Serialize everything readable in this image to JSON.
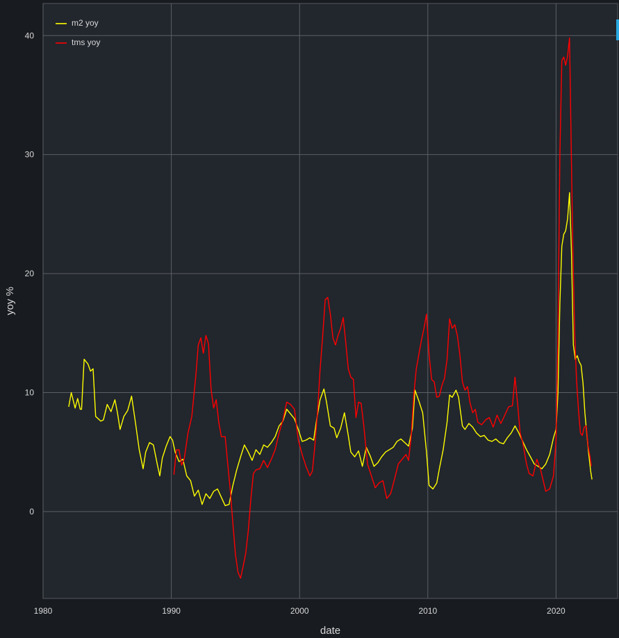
{
  "chart_data": {
    "type": "line",
    "xlabel": "date",
    "ylabel": "yoy %",
    "xlim": [
      1980,
      2024.8
    ],
    "ylim": [
      -7.3,
      42.7
    ],
    "x_ticks": [
      1980,
      1990,
      2000,
      2010,
      2020
    ],
    "y_ticks": [
      0,
      10,
      20,
      30,
      40
    ],
    "grid": true,
    "legend_position": "top-left",
    "background": "#22262d",
    "series": [
      {
        "name": "m2 yoy",
        "color": "#ffff00",
        "points": [
          [
            1982.0,
            8.8
          ],
          [
            1982.2,
            10.0
          ],
          [
            1982.5,
            8.7
          ],
          [
            1982.7,
            9.5
          ],
          [
            1982.9,
            8.6
          ],
          [
            1983.0,
            8.6
          ],
          [
            1983.2,
            12.8
          ],
          [
            1983.5,
            12.4
          ],
          [
            1983.7,
            11.8
          ],
          [
            1983.9,
            12.0
          ],
          [
            1984.1,
            8.0
          ],
          [
            1984.5,
            7.6
          ],
          [
            1984.7,
            7.7
          ],
          [
            1985.0,
            9.0
          ],
          [
            1985.3,
            8.4
          ],
          [
            1985.6,
            9.4
          ],
          [
            1985.8,
            8.3
          ],
          [
            1986.0,
            6.9
          ],
          [
            1986.3,
            8.0
          ],
          [
            1986.6,
            8.5
          ],
          [
            1986.9,
            9.7
          ],
          [
            1987.2,
            7.5
          ],
          [
            1987.5,
            5.2
          ],
          [
            1987.8,
            3.6
          ],
          [
            1988.0,
            5.0
          ],
          [
            1988.3,
            5.8
          ],
          [
            1988.6,
            5.6
          ],
          [
            1988.9,
            4.0
          ],
          [
            1989.1,
            3.0
          ],
          [
            1989.3,
            4.5
          ],
          [
            1989.6,
            5.5
          ],
          [
            1989.9,
            6.3
          ],
          [
            1990.1,
            6.0
          ],
          [
            1990.3,
            5.0
          ],
          [
            1990.6,
            4.2
          ],
          [
            1990.9,
            4.4
          ],
          [
            1991.2,
            3.0
          ],
          [
            1991.5,
            2.6
          ],
          [
            1991.8,
            1.3
          ],
          [
            1992.1,
            1.8
          ],
          [
            1992.4,
            0.6
          ],
          [
            1992.7,
            1.5
          ],
          [
            1993.0,
            1.1
          ],
          [
            1993.3,
            1.7
          ],
          [
            1993.6,
            1.9
          ],
          [
            1993.9,
            1.2
          ],
          [
            1994.2,
            0.5
          ],
          [
            1994.5,
            0.6
          ],
          [
            1994.8,
            2.2
          ],
          [
            1995.1,
            3.5
          ],
          [
            1995.4,
            4.6
          ],
          [
            1995.7,
            5.6
          ],
          [
            1996.0,
            5.0
          ],
          [
            1996.3,
            4.3
          ],
          [
            1996.6,
            5.2
          ],
          [
            1996.9,
            4.8
          ],
          [
            1997.2,
            5.6
          ],
          [
            1997.5,
            5.4
          ],
          [
            1997.8,
            5.8
          ],
          [
            1998.1,
            6.3
          ],
          [
            1998.4,
            7.2
          ],
          [
            1998.7,
            7.6
          ],
          [
            1999.0,
            8.6
          ],
          [
            1999.3,
            8.2
          ],
          [
            1999.6,
            7.8
          ],
          [
            1999.9,
            6.9
          ],
          [
            2000.2,
            5.9
          ],
          [
            2000.5,
            6.0
          ],
          [
            2000.8,
            6.2
          ],
          [
            2001.1,
            6.0
          ],
          [
            2001.3,
            7.5
          ],
          [
            2001.6,
            9.4
          ],
          [
            2001.9,
            10.3
          ],
          [
            2002.1,
            9.2
          ],
          [
            2002.4,
            7.2
          ],
          [
            2002.7,
            7.0
          ],
          [
            2002.9,
            6.2
          ],
          [
            2003.2,
            7.0
          ],
          [
            2003.5,
            8.3
          ],
          [
            2003.8,
            6.4
          ],
          [
            2004.0,
            5.0
          ],
          [
            2004.3,
            4.6
          ],
          [
            2004.6,
            5.1
          ],
          [
            2004.9,
            3.8
          ],
          [
            2005.2,
            5.4
          ],
          [
            2005.5,
            4.7
          ],
          [
            2005.8,
            3.8
          ],
          [
            2006.1,
            4.1
          ],
          [
            2006.4,
            4.6
          ],
          [
            2006.7,
            5.0
          ],
          [
            2007.0,
            5.2
          ],
          [
            2007.3,
            5.4
          ],
          [
            2007.6,
            5.9
          ],
          [
            2007.9,
            6.1
          ],
          [
            2008.2,
            5.8
          ],
          [
            2008.5,
            5.5
          ],
          [
            2008.8,
            7.0
          ],
          [
            2009.0,
            10.2
          ],
          [
            2009.3,
            9.3
          ],
          [
            2009.6,
            8.3
          ],
          [
            2009.9,
            5.0
          ],
          [
            2010.1,
            2.2
          ],
          [
            2010.4,
            1.9
          ],
          [
            2010.7,
            2.4
          ],
          [
            2010.9,
            3.6
          ],
          [
            2011.2,
            5.2
          ],
          [
            2011.5,
            7.5
          ],
          [
            2011.7,
            9.8
          ],
          [
            2011.9,
            9.6
          ],
          [
            2012.2,
            10.2
          ],
          [
            2012.4,
            9.6
          ],
          [
            2012.7,
            7.2
          ],
          [
            2012.9,
            6.9
          ],
          [
            2013.2,
            7.4
          ],
          [
            2013.5,
            7.1
          ],
          [
            2013.8,
            6.6
          ],
          [
            2014.1,
            6.3
          ],
          [
            2014.4,
            6.4
          ],
          [
            2014.7,
            6.0
          ],
          [
            2015.0,
            5.9
          ],
          [
            2015.3,
            6.1
          ],
          [
            2015.6,
            5.8
          ],
          [
            2015.9,
            5.7
          ],
          [
            2016.2,
            6.2
          ],
          [
            2016.5,
            6.6
          ],
          [
            2016.8,
            7.2
          ],
          [
            2017.1,
            6.6
          ],
          [
            2017.4,
            5.9
          ],
          [
            2017.7,
            5.2
          ],
          [
            2018.0,
            4.6
          ],
          [
            2018.3,
            4.0
          ],
          [
            2018.6,
            3.8
          ],
          [
            2018.9,
            3.6
          ],
          [
            2019.2,
            4.0
          ],
          [
            2019.5,
            4.8
          ],
          [
            2019.8,
            6.2
          ],
          [
            2020.0,
            6.9
          ],
          [
            2020.15,
            10.0
          ],
          [
            2020.3,
            17.5
          ],
          [
            2020.45,
            22.3
          ],
          [
            2020.6,
            23.3
          ],
          [
            2020.75,
            23.6
          ],
          [
            2020.9,
            24.6
          ],
          [
            2021.05,
            26.8
          ],
          [
            2021.2,
            22.0
          ],
          [
            2021.35,
            14.0
          ],
          [
            2021.5,
            12.8
          ],
          [
            2021.65,
            13.1
          ],
          [
            2021.8,
            12.6
          ],
          [
            2021.95,
            12.3
          ],
          [
            2022.1,
            10.8
          ],
          [
            2022.25,
            8.3
          ],
          [
            2022.4,
            6.5
          ],
          [
            2022.55,
            4.8
          ],
          [
            2022.7,
            3.4
          ],
          [
            2022.8,
            2.7
          ]
        ]
      },
      {
        "name": "tms yoy",
        "color": "#ff0000",
        "points": [
          [
            1990.2,
            3.1
          ],
          [
            1990.4,
            5.2
          ],
          [
            1990.6,
            5.2
          ],
          [
            1990.8,
            3.9
          ],
          [
            1991.0,
            4.4
          ],
          [
            1991.3,
            6.6
          ],
          [
            1991.6,
            8.0
          ],
          [
            1991.9,
            11.3
          ],
          [
            1992.1,
            14.0
          ],
          [
            1992.3,
            14.6
          ],
          [
            1992.5,
            13.3
          ],
          [
            1992.7,
            14.8
          ],
          [
            1992.9,
            14.1
          ],
          [
            1993.1,
            10.3
          ],
          [
            1993.3,
            8.7
          ],
          [
            1993.5,
            9.4
          ],
          [
            1993.7,
            7.5
          ],
          [
            1993.9,
            6.3
          ],
          [
            1994.2,
            6.3
          ],
          [
            1994.4,
            4.0
          ],
          [
            1994.6,
            1.8
          ],
          [
            1994.8,
            -1.0
          ],
          [
            1995.0,
            -3.6
          ],
          [
            1995.2,
            -5.1
          ],
          [
            1995.4,
            -5.6
          ],
          [
            1995.6,
            -4.6
          ],
          [
            1995.8,
            -3.5
          ],
          [
            1996.0,
            -1.6
          ],
          [
            1996.2,
            1.0
          ],
          [
            1996.4,
            3.2
          ],
          [
            1996.6,
            3.5
          ],
          [
            1996.9,
            3.6
          ],
          [
            1997.2,
            4.3
          ],
          [
            1997.5,
            3.7
          ],
          [
            1997.8,
            4.4
          ],
          [
            1998.1,
            5.2
          ],
          [
            1998.4,
            6.6
          ],
          [
            1998.7,
            7.7
          ],
          [
            1999.0,
            9.2
          ],
          [
            1999.3,
            9.0
          ],
          [
            1999.6,
            8.6
          ],
          [
            1999.9,
            6.0
          ],
          [
            2000.2,
            4.8
          ],
          [
            2000.5,
            3.8
          ],
          [
            2000.8,
            3.0
          ],
          [
            2001.0,
            3.4
          ],
          [
            2001.2,
            5.6
          ],
          [
            2001.4,
            8.3
          ],
          [
            2001.6,
            11.9
          ],
          [
            2001.8,
            14.7
          ],
          [
            2002.0,
            17.8
          ],
          [
            2002.2,
            18.0
          ],
          [
            2002.4,
            16.6
          ],
          [
            2002.6,
            14.6
          ],
          [
            2002.8,
            14.0
          ],
          [
            2003.0,
            14.8
          ],
          [
            2003.2,
            15.4
          ],
          [
            2003.4,
            16.3
          ],
          [
            2003.6,
            14.2
          ],
          [
            2003.8,
            12.0
          ],
          [
            2004.0,
            11.3
          ],
          [
            2004.2,
            11.1
          ],
          [
            2004.4,
            7.9
          ],
          [
            2004.6,
            9.2
          ],
          [
            2004.8,
            9.1
          ],
          [
            2005.0,
            7.3
          ],
          [
            2005.3,
            4.0
          ],
          [
            2005.6,
            3.0
          ],
          [
            2005.9,
            2.0
          ],
          [
            2006.2,
            2.4
          ],
          [
            2006.5,
            2.6
          ],
          [
            2006.8,
            1.1
          ],
          [
            2007.1,
            1.5
          ],
          [
            2007.4,
            2.7
          ],
          [
            2007.7,
            4.0
          ],
          [
            2008.0,
            4.4
          ],
          [
            2008.3,
            4.8
          ],
          [
            2008.5,
            4.3
          ],
          [
            2008.7,
            6.3
          ],
          [
            2008.9,
            9.7
          ],
          [
            2009.1,
            12.0
          ],
          [
            2009.3,
            13.2
          ],
          [
            2009.5,
            14.4
          ],
          [
            2009.7,
            15.4
          ],
          [
            2009.9,
            16.6
          ],
          [
            2010.1,
            13.2
          ],
          [
            2010.3,
            11.1
          ],
          [
            2010.5,
            10.9
          ],
          [
            2010.7,
            9.6
          ],
          [
            2010.9,
            9.7
          ],
          [
            2011.1,
            10.6
          ],
          [
            2011.3,
            11.2
          ],
          [
            2011.5,
            12.8
          ],
          [
            2011.7,
            16.2
          ],
          [
            2011.9,
            15.4
          ],
          [
            2012.1,
            15.7
          ],
          [
            2012.3,
            14.8
          ],
          [
            2012.5,
            13.2
          ],
          [
            2012.7,
            10.9
          ],
          [
            2012.9,
            10.2
          ],
          [
            2013.1,
            10.5
          ],
          [
            2013.3,
            9.1
          ],
          [
            2013.5,
            8.3
          ],
          [
            2013.7,
            8.6
          ],
          [
            2013.9,
            7.5
          ],
          [
            2014.2,
            7.3
          ],
          [
            2014.5,
            7.7
          ],
          [
            2014.8,
            7.9
          ],
          [
            2015.1,
            7.1
          ],
          [
            2015.4,
            8.1
          ],
          [
            2015.7,
            7.4
          ],
          [
            2016.0,
            8.1
          ],
          [
            2016.3,
            8.8
          ],
          [
            2016.6,
            8.9
          ],
          [
            2016.8,
            11.3
          ],
          [
            2017.0,
            9.1
          ],
          [
            2017.2,
            6.6
          ],
          [
            2017.4,
            5.8
          ],
          [
            2017.7,
            4.0
          ],
          [
            2017.9,
            3.2
          ],
          [
            2018.2,
            3.0
          ],
          [
            2018.5,
            4.4
          ],
          [
            2018.8,
            3.5
          ],
          [
            2019.0,
            2.6
          ],
          [
            2019.2,
            1.7
          ],
          [
            2019.5,
            1.9
          ],
          [
            2019.8,
            3.0
          ],
          [
            2020.0,
            6.0
          ],
          [
            2020.15,
            15.0
          ],
          [
            2020.3,
            30.0
          ],
          [
            2020.45,
            37.9
          ],
          [
            2020.6,
            38.2
          ],
          [
            2020.75,
            37.5
          ],
          [
            2020.9,
            38.3
          ],
          [
            2021.05,
            39.8
          ],
          [
            2021.15,
            33.0
          ],
          [
            2021.3,
            22.5
          ],
          [
            2021.45,
            15.0
          ],
          [
            2021.6,
            11.0
          ],
          [
            2021.75,
            8.5
          ],
          [
            2021.9,
            6.6
          ],
          [
            2022.05,
            6.4
          ],
          [
            2022.2,
            7.1
          ],
          [
            2022.35,
            7.2
          ],
          [
            2022.5,
            5.5
          ],
          [
            2022.65,
            4.6
          ],
          [
            2022.75,
            3.8
          ]
        ]
      }
    ]
  }
}
